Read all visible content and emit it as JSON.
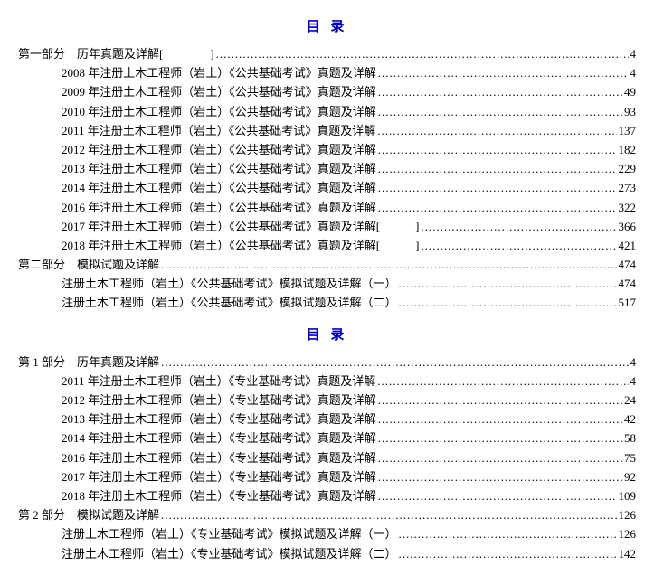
{
  "title_color": "#0000cc",
  "text_color": "#000000",
  "bg_color": "#ffffff",
  "toc1": {
    "title": "目  录",
    "sections": [
      {
        "label": "第一部分　历年真题及详解[　　　　]",
        "page": "4",
        "entries": [
          {
            "label": "2008 年注册土木工程师（岩土）《公共基础考试》真题及详解",
            "page": "4"
          },
          {
            "label": "2009 年注册土木工程师（岩土）《公共基础考试》真题及详解",
            "page": "49"
          },
          {
            "label": "2010 年注册土木工程师（岩土）《公共基础考试》真题及详解",
            "page": "93"
          },
          {
            "label": "2011 年注册土木工程师（岩土）《公共基础考试》真题及详解",
            "page": "137"
          },
          {
            "label": "2012 年注册土木工程师（岩土）《公共基础考试》真题及详解",
            "page": "182"
          },
          {
            "label": "2013 年注册土木工程师（岩土）《公共基础考试》真题及详解",
            "page": "229"
          },
          {
            "label": "2014 年注册土木工程师（岩土）《公共基础考试》真题及详解",
            "page": "273"
          },
          {
            "label": "2016 年注册土木工程师（岩土）《公共基础考试》真题及详解",
            "page": "322"
          },
          {
            "label": "2017 年注册土木工程师（岩土）《公共基础考试》真题及详解[　　　]",
            "page": "366"
          },
          {
            "label": "2018 年注册土木工程师（岩土）《公共基础考试》真题及详解[　　　]",
            "page": "421"
          }
        ]
      },
      {
        "label": "第二部分　模拟试题及详解",
        "page": "474",
        "entries": [
          {
            "label": "注册土木工程师（岩土）《公共基础考试》模拟试题及详解（一）",
            "page": "474"
          },
          {
            "label": "注册土木工程师（岩土）《公共基础考试》模拟试题及详解（二）",
            "page": "517"
          }
        ]
      }
    ]
  },
  "toc2": {
    "title": "目  录",
    "sections": [
      {
        "label": "第 1 部分　历年真题及详解",
        "page": "4",
        "entries": [
          {
            "label": "2011 年注册土木工程师（岩土）《专业基础考试》真题及详解",
            "page": "4"
          },
          {
            "label": "2012 年注册土木工程师（岩土）《专业基础考试》真题及详解",
            "page": "24"
          },
          {
            "label": "2013 年注册土木工程师（岩土）《专业基础考试》真题及详解",
            "page": "42"
          },
          {
            "label": "2014 年注册土木工程师（岩土）《专业基础考试》真题及详解",
            "page": "58"
          },
          {
            "label": "2016 年注册土木工程师（岩土）《专业基础考试》真题及详解",
            "page": "75"
          },
          {
            "label": "2017 年注册土木工程师（岩土）《专业基础考试》真题及详解",
            "page": "92"
          },
          {
            "label": "2018 年注册土木工程师（岩土）《专业基础考试》真题及详解",
            "page": "109"
          }
        ]
      },
      {
        "label": "第 2 部分　模拟试题及详解",
        "page": "126",
        "entries": [
          {
            "label": "注册土木工程师（岩土）《专业基础考试》模拟试题及详解（一）",
            "page": "126"
          },
          {
            "label": "注册土木工程师（岩土）《专业基础考试》模拟试题及详解（二）",
            "page": "142"
          }
        ]
      }
    ]
  }
}
